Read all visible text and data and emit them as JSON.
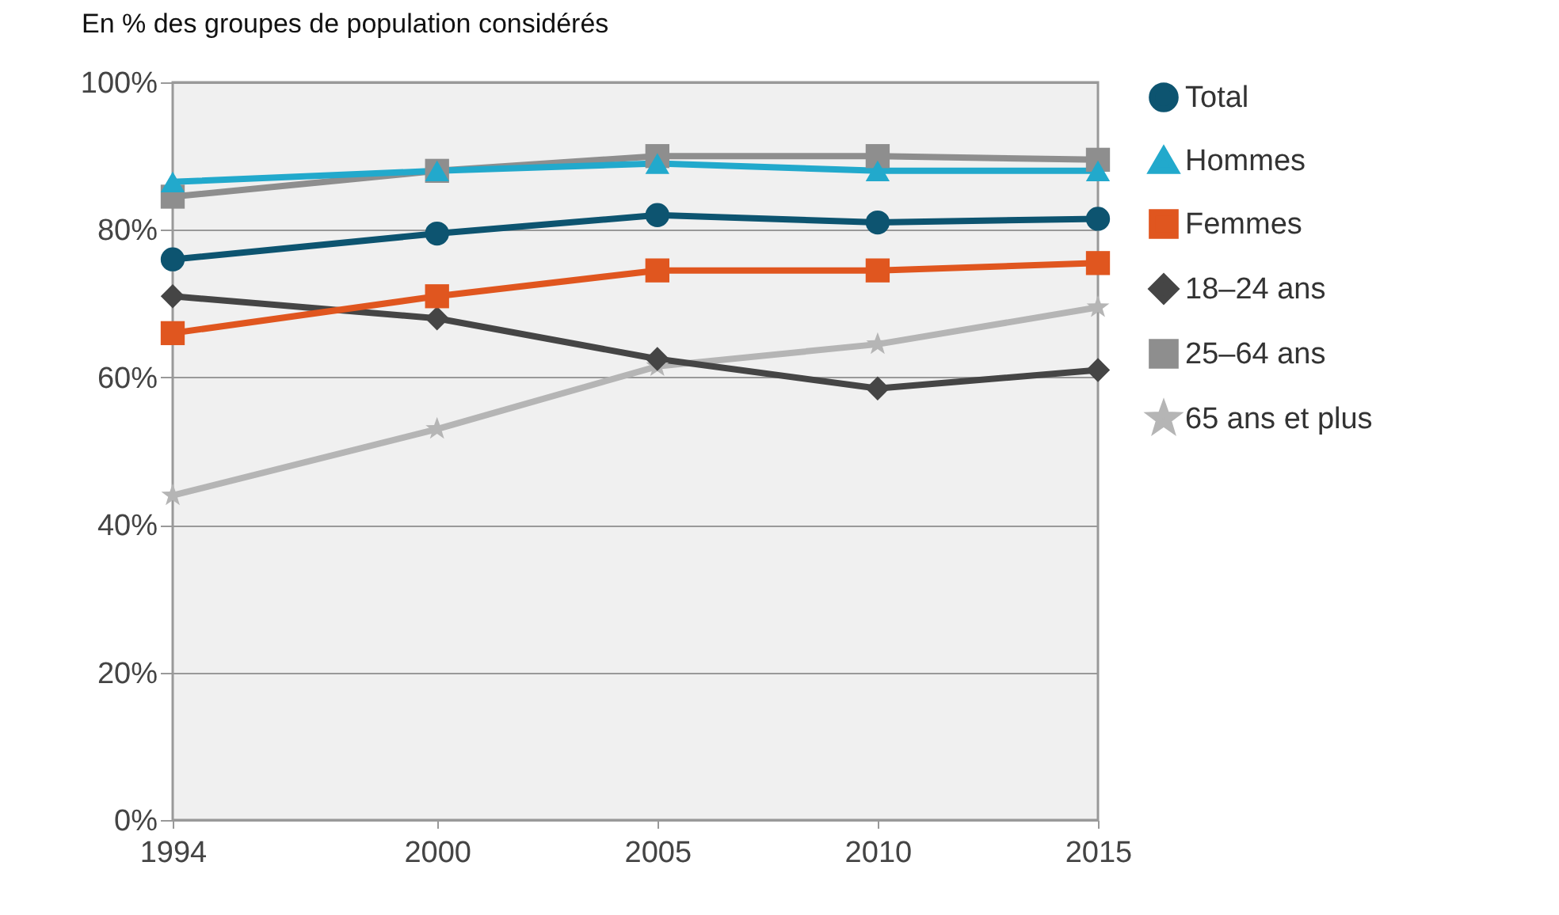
{
  "chart_data": {
    "type": "line",
    "ylabel": "En % des groupes de population considérés",
    "x": [
      1994,
      2000,
      2005,
      2010,
      2015
    ],
    "xlim": [
      1994,
      2015
    ],
    "xticks": [
      1994,
      2000,
      2005,
      2010,
      2015
    ],
    "ylim": [
      0,
      100
    ],
    "yticks": [
      {
        "value": 0,
        "label": "0%"
      },
      {
        "value": 20,
        "label": "20%"
      },
      {
        "value": 40,
        "label": "40%"
      },
      {
        "value": 60,
        "label": "60%"
      },
      {
        "value": 80,
        "label": "80%"
      },
      {
        "value": 100,
        "label": "100%"
      }
    ],
    "grid": "y",
    "legend": "right",
    "line_style": "solid",
    "series": [
      {
        "name": "Total",
        "color": "#0d5470",
        "marker": "circle",
        "values": [
          76,
          79.5,
          82,
          81,
          81.5
        ]
      },
      {
        "name": "Hommes",
        "color": "#22a9cc",
        "marker": "triangle",
        "values": [
          86.5,
          88,
          89,
          88,
          88
        ]
      },
      {
        "name": "Femmes",
        "color": "#e0561f",
        "marker": "square",
        "values": [
          66,
          71,
          74.5,
          74.5,
          75.5
        ]
      },
      {
        "name": "18–24 ans",
        "color": "#454545",
        "marker": "diamond",
        "values": [
          71,
          68,
          62.5,
          58.5,
          61
        ]
      },
      {
        "name": "25–64 ans",
        "color": "#8e8e8e",
        "marker": "square",
        "values": [
          84.5,
          88,
          90,
          90,
          89.5
        ]
      },
      {
        "name": "65 ans et plus",
        "color": "#b5b5b5",
        "marker": "star",
        "values": [
          44,
          53,
          61.5,
          64.5,
          69.5
        ]
      }
    ]
  }
}
